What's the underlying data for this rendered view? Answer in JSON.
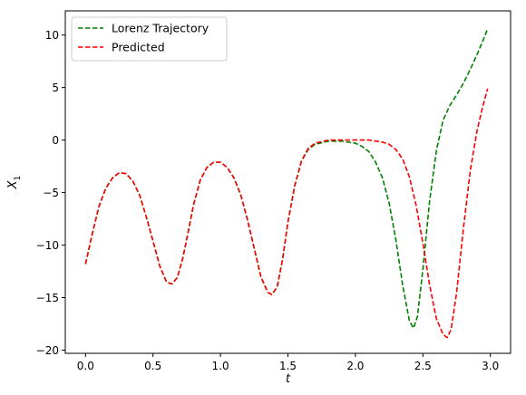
{
  "chart_data": {
    "type": "line",
    "title": "",
    "xlabel": "t",
    "ylabel": "X",
    "ylabel_subscript": "1",
    "xlim": [
      -0.15,
      3.15
    ],
    "ylim": [
      -20.3,
      12.3
    ],
    "xticks": [
      0.0,
      0.5,
      1.0,
      1.5,
      2.0,
      2.5,
      3.0
    ],
    "xtick_labels": [
      "0.0",
      "0.5",
      "1.0",
      "1.5",
      "2.0",
      "2.5",
      "3.0"
    ],
    "yticks": [
      10,
      5,
      0,
      -5,
      -10,
      -15,
      -20
    ],
    "ytick_labels": [
      "10",
      "5",
      "0",
      "−5",
      "−10",
      "−15",
      "−20"
    ],
    "grid": false,
    "legend_position": "upper-left",
    "series": [
      {
        "name": "Lorenz Trajectory",
        "color": "#008000",
        "style": "dashed",
        "points": [
          [
            0.0,
            -11.8
          ],
          [
            0.05,
            -8.9
          ],
          [
            0.1,
            -6.3
          ],
          [
            0.15,
            -4.6
          ],
          [
            0.2,
            -3.6
          ],
          [
            0.25,
            -3.1
          ],
          [
            0.3,
            -3.2
          ],
          [
            0.35,
            -3.9
          ],
          [
            0.4,
            -5.2
          ],
          [
            0.45,
            -7.3
          ],
          [
            0.5,
            -9.6
          ],
          [
            0.55,
            -12.0
          ],
          [
            0.6,
            -13.5
          ],
          [
            0.64,
            -13.7
          ],
          [
            0.68,
            -13.1
          ],
          [
            0.72,
            -11.3
          ],
          [
            0.76,
            -8.8
          ],
          [
            0.8,
            -6.2
          ],
          [
            0.85,
            -3.8
          ],
          [
            0.9,
            -2.6
          ],
          [
            0.95,
            -2.1
          ],
          [
            1.0,
            -2.1
          ],
          [
            1.05,
            -2.6
          ],
          [
            1.1,
            -3.6
          ],
          [
            1.15,
            -5.2
          ],
          [
            1.2,
            -7.6
          ],
          [
            1.25,
            -10.3
          ],
          [
            1.3,
            -13.0
          ],
          [
            1.35,
            -14.5
          ],
          [
            1.38,
            -14.7
          ],
          [
            1.42,
            -14.0
          ],
          [
            1.46,
            -11.4
          ],
          [
            1.5,
            -7.8
          ],
          [
            1.55,
            -4.4
          ],
          [
            1.6,
            -2.0
          ],
          [
            1.65,
            -0.9
          ],
          [
            1.7,
            -0.4
          ],
          [
            1.8,
            -0.1
          ],
          [
            1.9,
            -0.1
          ],
          [
            2.0,
            -0.3
          ],
          [
            2.05,
            -0.6
          ],
          [
            2.1,
            -1.1
          ],
          [
            2.15,
            -2.1
          ],
          [
            2.2,
            -3.6
          ],
          [
            2.25,
            -6.0
          ],
          [
            2.3,
            -9.5
          ],
          [
            2.35,
            -13.8
          ],
          [
            2.4,
            -17.2
          ],
          [
            2.43,
            -17.9
          ],
          [
            2.46,
            -16.8
          ],
          [
            2.5,
            -12.3
          ],
          [
            2.55,
            -5.8
          ],
          [
            2.6,
            -1.0
          ],
          [
            2.65,
            1.9
          ],
          [
            2.7,
            3.3
          ],
          [
            2.75,
            4.3
          ],
          [
            2.8,
            5.4
          ],
          [
            2.85,
            6.7
          ],
          [
            2.9,
            8.1
          ],
          [
            2.95,
            9.6
          ],
          [
            2.98,
            10.6
          ]
        ]
      },
      {
        "name": "Predicted",
        "color": "#ff0000",
        "style": "dashed",
        "points": [
          [
            0.0,
            -11.8
          ],
          [
            0.05,
            -8.9
          ],
          [
            0.1,
            -6.3
          ],
          [
            0.15,
            -4.6
          ],
          [
            0.2,
            -3.6
          ],
          [
            0.25,
            -3.1
          ],
          [
            0.3,
            -3.2
          ],
          [
            0.35,
            -3.9
          ],
          [
            0.4,
            -5.2
          ],
          [
            0.45,
            -7.3
          ],
          [
            0.5,
            -9.6
          ],
          [
            0.55,
            -12.0
          ],
          [
            0.6,
            -13.5
          ],
          [
            0.64,
            -13.7
          ],
          [
            0.68,
            -13.1
          ],
          [
            0.72,
            -11.3
          ],
          [
            0.76,
            -8.8
          ],
          [
            0.8,
            -6.2
          ],
          [
            0.85,
            -3.8
          ],
          [
            0.9,
            -2.6
          ],
          [
            0.95,
            -2.1
          ],
          [
            1.0,
            -2.1
          ],
          [
            1.05,
            -2.6
          ],
          [
            1.1,
            -3.6
          ],
          [
            1.15,
            -5.2
          ],
          [
            1.2,
            -7.6
          ],
          [
            1.25,
            -10.3
          ],
          [
            1.3,
            -13.0
          ],
          [
            1.35,
            -14.5
          ],
          [
            1.38,
            -14.7
          ],
          [
            1.42,
            -14.0
          ],
          [
            1.46,
            -11.4
          ],
          [
            1.5,
            -7.8
          ],
          [
            1.55,
            -4.4
          ],
          [
            1.6,
            -2.0
          ],
          [
            1.65,
            -0.8
          ],
          [
            1.7,
            -0.3
          ],
          [
            1.8,
            0.0
          ],
          [
            1.9,
            0.0
          ],
          [
            2.0,
            0.0
          ],
          [
            2.1,
            0.0
          ],
          [
            2.2,
            -0.2
          ],
          [
            2.25,
            -0.4
          ],
          [
            2.3,
            -0.9
          ],
          [
            2.35,
            -1.8
          ],
          [
            2.4,
            -3.5
          ],
          [
            2.45,
            -6.2
          ],
          [
            2.5,
            -9.8
          ],
          [
            2.55,
            -13.8
          ],
          [
            2.6,
            -17.0
          ],
          [
            2.65,
            -18.5
          ],
          [
            2.68,
            -18.8
          ],
          [
            2.71,
            -18.0
          ],
          [
            2.75,
            -14.5
          ],
          [
            2.8,
            -8.5
          ],
          [
            2.85,
            -3.0
          ],
          [
            2.9,
            0.8
          ],
          [
            2.94,
            3.0
          ],
          [
            2.98,
            4.9
          ]
        ]
      }
    ]
  }
}
